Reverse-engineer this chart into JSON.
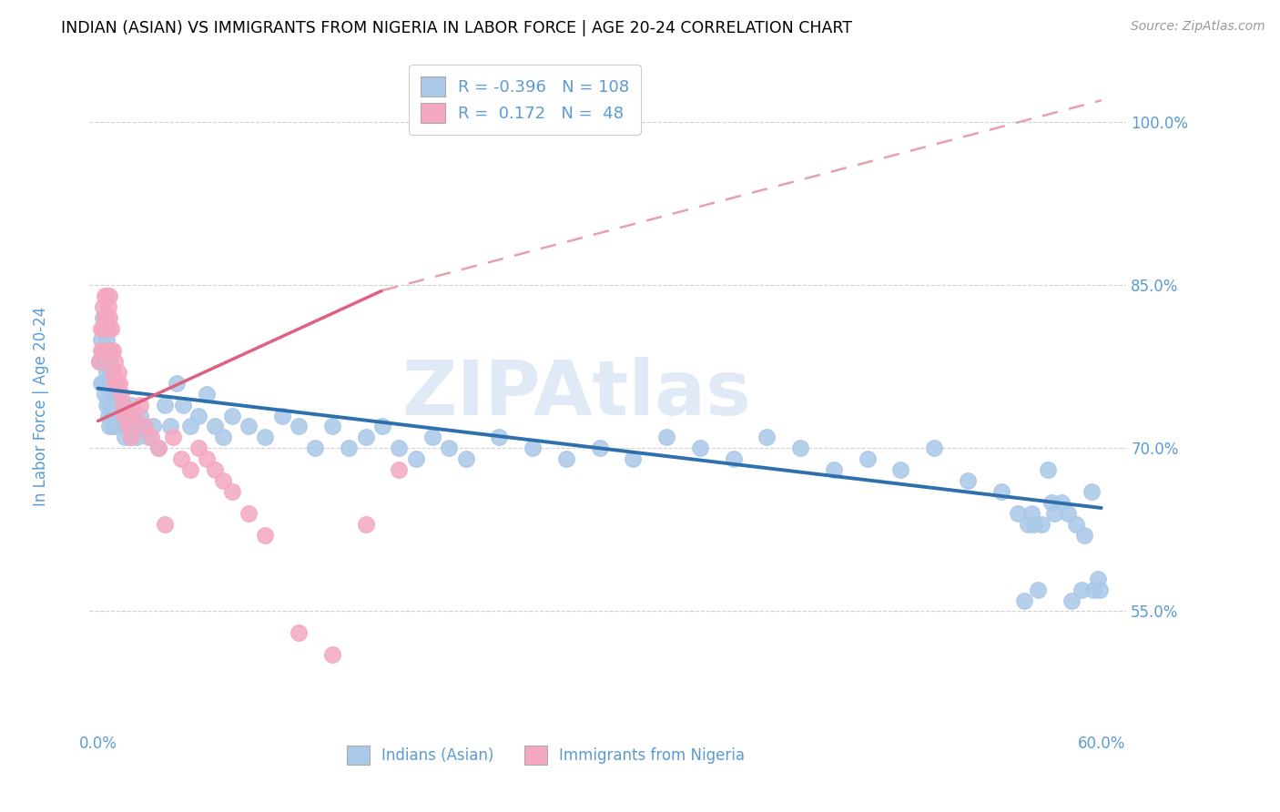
{
  "title": "INDIAN (ASIAN) VS IMMIGRANTS FROM NIGERIA IN LABOR FORCE | AGE 20-24 CORRELATION CHART",
  "source": "Source: ZipAtlas.com",
  "ylabel": "In Labor Force | Age 20-24",
  "blue_scatter_color": "#aac8e8",
  "pink_scatter_color": "#f4a8c0",
  "blue_line_color": "#2e6fad",
  "pink_line_color": "#e06080",
  "pink_dash_color": "#e8a0b0",
  "grid_color": "#cccccc",
  "ytick_color": "#5b9bd5",
  "xtick_color": "#5b9bd5",
  "watermark": "ZIPAtlas",
  "watermark_color": "#ccddf0",
  "legend_R_blue": "-0.396",
  "legend_N_blue": "108",
  "legend_R_pink": "0.172",
  "legend_N_pink": "48",
  "xlim": [
    -0.005,
    0.615
  ],
  "ylim": [
    0.44,
    1.06
  ],
  "xtick_vals": [
    0.0,
    0.1,
    0.2,
    0.3,
    0.4,
    0.5,
    0.6
  ],
  "ytick_vals": [
    0.55,
    0.7,
    0.85,
    1.0
  ],
  "ytick_labels": [
    "55.0%",
    "70.0%",
    "85.0%",
    "100.0%"
  ],
  "blue_trend": [
    0.0,
    0.755,
    0.6,
    0.645
  ],
  "pink_trend_solid": [
    0.0,
    0.725,
    0.17,
    0.845
  ],
  "pink_trend_dash": [
    0.0,
    0.725,
    0.6,
    1.02
  ],
  "blue_x": [
    0.001,
    0.002,
    0.002,
    0.003,
    0.003,
    0.003,
    0.004,
    0.004,
    0.004,
    0.005,
    0.005,
    0.005,
    0.006,
    0.006,
    0.006,
    0.007,
    0.007,
    0.007,
    0.007,
    0.008,
    0.008,
    0.008,
    0.009,
    0.009,
    0.009,
    0.01,
    0.01,
    0.01,
    0.011,
    0.011,
    0.012,
    0.012,
    0.013,
    0.014,
    0.015,
    0.016,
    0.017,
    0.018,
    0.019,
    0.02,
    0.021,
    0.022,
    0.023,
    0.025,
    0.027,
    0.03,
    0.033,
    0.036,
    0.04,
    0.043,
    0.047,
    0.051,
    0.055,
    0.06,
    0.065,
    0.07,
    0.075,
    0.08,
    0.09,
    0.1,
    0.11,
    0.12,
    0.13,
    0.14,
    0.15,
    0.16,
    0.17,
    0.18,
    0.19,
    0.2,
    0.21,
    0.22,
    0.24,
    0.26,
    0.28,
    0.3,
    0.32,
    0.34,
    0.36,
    0.38,
    0.4,
    0.42,
    0.44,
    0.46,
    0.48,
    0.5,
    0.52,
    0.54,
    0.55,
    0.56,
    0.57,
    0.58,
    0.585,
    0.59,
    0.595,
    0.598,
    0.599,
    0.594,
    0.588,
    0.582,
    0.576,
    0.572,
    0.568,
    0.564,
    0.562,
    0.558,
    0.556,
    0.554
  ],
  "blue_y": [
    0.78,
    0.8,
    0.76,
    0.82,
    0.79,
    0.76,
    0.81,
    0.78,
    0.75,
    0.8,
    0.77,
    0.74,
    0.79,
    0.76,
    0.73,
    0.78,
    0.76,
    0.74,
    0.72,
    0.77,
    0.75,
    0.73,
    0.76,
    0.74,
    0.72,
    0.75,
    0.73,
    0.72,
    0.76,
    0.74,
    0.75,
    0.73,
    0.74,
    0.73,
    0.72,
    0.71,
    0.73,
    0.72,
    0.71,
    0.74,
    0.73,
    0.72,
    0.71,
    0.73,
    0.72,
    0.71,
    0.72,
    0.7,
    0.74,
    0.72,
    0.76,
    0.74,
    0.72,
    0.73,
    0.75,
    0.72,
    0.71,
    0.73,
    0.72,
    0.71,
    0.73,
    0.72,
    0.7,
    0.72,
    0.7,
    0.71,
    0.72,
    0.7,
    0.69,
    0.71,
    0.7,
    0.69,
    0.71,
    0.7,
    0.69,
    0.7,
    0.69,
    0.71,
    0.7,
    0.69,
    0.71,
    0.7,
    0.68,
    0.69,
    0.68,
    0.7,
    0.67,
    0.66,
    0.64,
    0.63,
    0.65,
    0.64,
    0.63,
    0.62,
    0.57,
    0.58,
    0.57,
    0.66,
    0.57,
    0.56,
    0.65,
    0.64,
    0.68,
    0.63,
    0.57,
    0.64,
    0.63,
    0.56
  ],
  "pink_x": [
    0.001,
    0.002,
    0.002,
    0.003,
    0.003,
    0.003,
    0.004,
    0.004,
    0.005,
    0.005,
    0.006,
    0.006,
    0.007,
    0.007,
    0.008,
    0.008,
    0.009,
    0.009,
    0.01,
    0.01,
    0.011,
    0.012,
    0.013,
    0.014,
    0.015,
    0.016,
    0.018,
    0.02,
    0.022,
    0.025,
    0.028,
    0.032,
    0.036,
    0.04,
    0.045,
    0.05,
    0.055,
    0.06,
    0.065,
    0.07,
    0.075,
    0.08,
    0.09,
    0.1,
    0.12,
    0.14,
    0.16,
    0.18
  ],
  "pink_y": [
    0.78,
    0.81,
    0.79,
    0.83,
    0.81,
    0.79,
    0.84,
    0.82,
    0.84,
    0.82,
    0.83,
    0.81,
    0.84,
    0.82,
    0.81,
    0.79,
    0.79,
    0.77,
    0.78,
    0.76,
    0.76,
    0.77,
    0.76,
    0.75,
    0.74,
    0.73,
    0.72,
    0.71,
    0.73,
    0.74,
    0.72,
    0.71,
    0.7,
    0.63,
    0.71,
    0.69,
    0.68,
    0.7,
    0.69,
    0.68,
    0.67,
    0.66,
    0.64,
    0.62,
    0.53,
    0.51,
    0.63,
    0.68
  ]
}
